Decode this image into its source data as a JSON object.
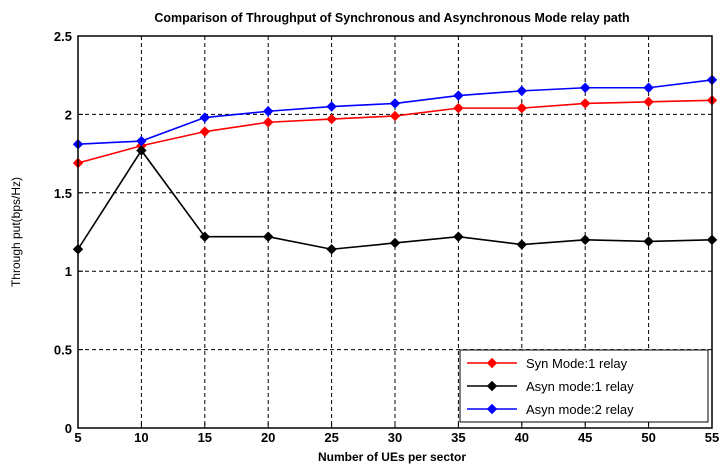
{
  "chart_data": {
    "type": "line",
    "title": "Comparison of Throughput of Synchronous and Asynchronous Mode relay path",
    "xlabel": "Number of UEs per sector",
    "ylabel": "Through put(bps/Hz)",
    "x": [
      5,
      10,
      15,
      20,
      25,
      30,
      35,
      40,
      45,
      50,
      55
    ],
    "xlim": [
      5,
      55
    ],
    "ylim": [
      0,
      2.5
    ],
    "xticks": [
      "5",
      "10",
      "15",
      "20",
      "25",
      "30",
      "35",
      "40",
      "45",
      "50",
      "55"
    ],
    "yticks": [
      "0",
      "0.5",
      "1",
      "1.5",
      "2",
      "2.5"
    ],
    "grid": true,
    "legend_position": "bottom-right",
    "series": [
      {
        "name": "Syn Mode:1 relay",
        "color": "#ff0000",
        "values": [
          1.69,
          1.8,
          1.89,
          1.95,
          1.97,
          1.99,
          2.04,
          2.04,
          2.07,
          2.08,
          2.09
        ]
      },
      {
        "name": "Asyn mode:1 relay",
        "color": "#000000",
        "values": [
          1.14,
          1.77,
          1.22,
          1.22,
          1.14,
          1.18,
          1.22,
          1.17,
          1.2,
          1.19,
          1.2
        ]
      },
      {
        "name": "Asyn mode:2 relay",
        "color": "#0000ff",
        "values": [
          1.81,
          1.83,
          1.98,
          2.02,
          2.05,
          2.07,
          2.12,
          2.15,
          2.17,
          2.17,
          2.22
        ]
      }
    ]
  }
}
